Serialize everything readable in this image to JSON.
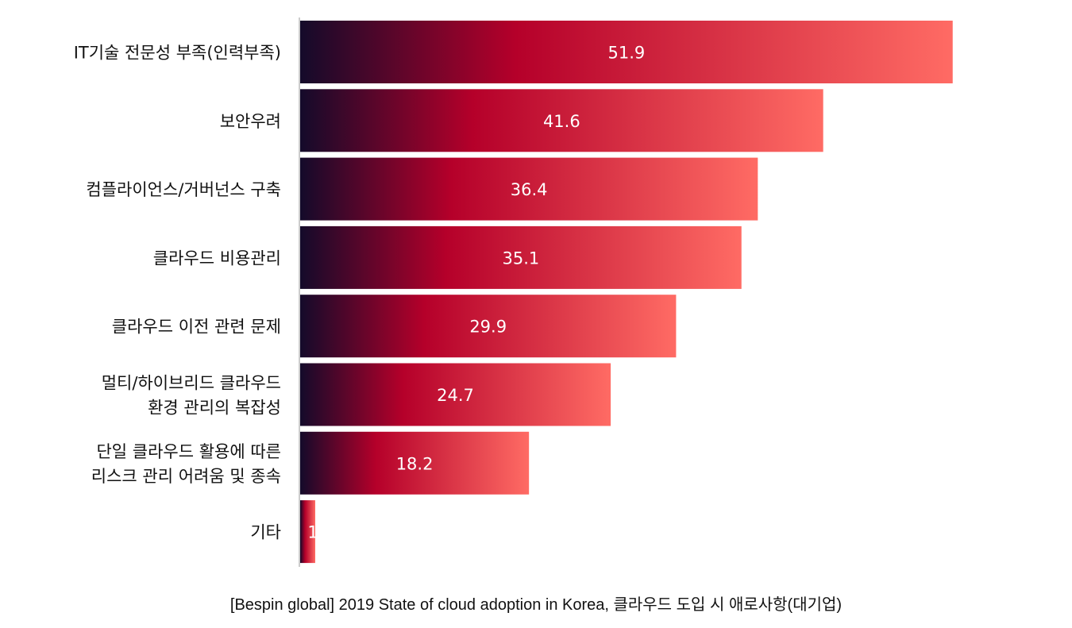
{
  "caption": "[Bespin global]  2019 State of cloud adoption in Korea, 클라우드 도입 시 애로사항(대기업)",
  "colors": {
    "gradient_start": "#140a2a",
    "gradient_mid": "#b5002a",
    "gradient_end": "#ff6b64",
    "label_text": "#111111",
    "value_text": "#ffffff",
    "axis": "#bbbbbb"
  },
  "chart_data": {
    "type": "bar",
    "orientation": "horizontal",
    "categories": [
      [
        "IT기술 전문성 부족(인력부족)"
      ],
      [
        "보안우려"
      ],
      [
        "컴플라이언스/거버넌스 구축"
      ],
      [
        "클라우드 비용관리"
      ],
      [
        "클라우드 이전 관련 문제"
      ],
      [
        "멀티/하이브리드 클라우드",
        "환경 관리의 복잡성"
      ],
      [
        "단일 클라우드 활용에 따른",
        "리스크 관리 어려움 및 종속"
      ],
      [
        "기타"
      ]
    ],
    "values": [
      51.9,
      41.6,
      36.4,
      35.1,
      29.9,
      24.7,
      18.2,
      1.2
    ],
    "data_labels": [
      "51.9",
      "41.6",
      "36.4",
      "35.1",
      "29.9",
      "24.7",
      "18.2",
      "1"
    ],
    "xlim": [
      0,
      60
    ],
    "title": "",
    "xlabel": "",
    "ylabel": "",
    "grid": false,
    "legend": "none"
  }
}
